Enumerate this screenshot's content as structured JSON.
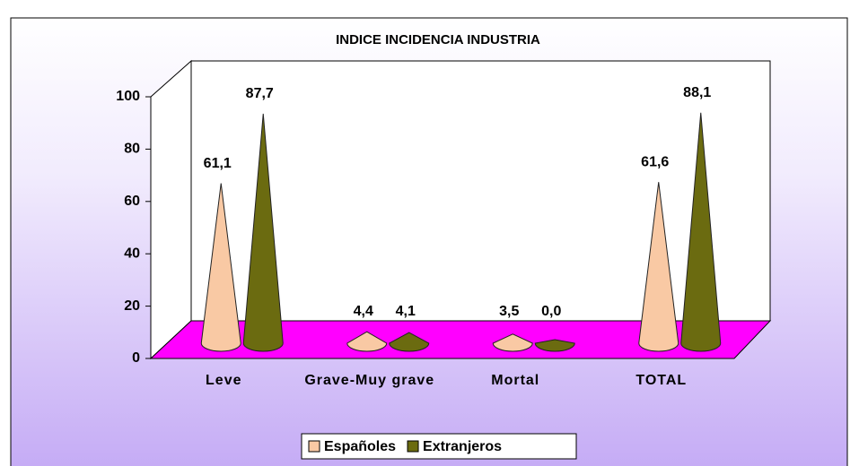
{
  "chart_data": {
    "type": "bar",
    "title": "INDICE INCIDENCIA INDUSTRIA",
    "categories": [
      "Leve",
      "Grave-Muy grave",
      "Mortal",
      "TOTAL"
    ],
    "series": [
      {
        "name": "Españoles",
        "color": "#f9c9a4",
        "values": [
          61.1,
          4.4,
          3.5,
          61.6
        ],
        "value_labels": [
          "61,1",
          "4,4",
          "3,5",
          "61,6"
        ]
      },
      {
        "name": "Extranjeros",
        "color": "#6b6b10",
        "values": [
          87.7,
          4.1,
          0.0,
          88.1
        ],
        "value_labels": [
          "87,7",
          "4,1",
          "0,0",
          "88,1"
        ]
      }
    ],
    "ylim": [
      0,
      100
    ],
    "yticks": [
      0,
      20,
      40,
      60,
      80,
      100
    ],
    "grid": false,
    "legend": "bottom"
  }
}
